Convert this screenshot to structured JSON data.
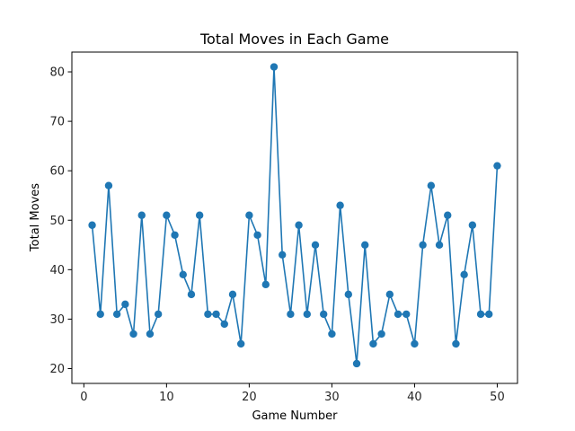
{
  "chart_data": {
    "type": "line",
    "title": "Total Moves in Each Game",
    "xlabel": "Game Number",
    "ylabel": "Total Moves",
    "xlim": [
      -1.45,
      52.45
    ],
    "ylim": [
      17,
      84
    ],
    "xticks": [
      0,
      10,
      20,
      30,
      40,
      50
    ],
    "yticks": [
      20,
      30,
      40,
      50,
      60,
      70,
      80
    ],
    "grid": false,
    "markers": true,
    "color": "#1f77b4",
    "x": [
      1,
      2,
      3,
      4,
      5,
      6,
      7,
      8,
      9,
      10,
      11,
      12,
      13,
      14,
      15,
      16,
      17,
      18,
      19,
      20,
      21,
      22,
      23,
      24,
      25,
      26,
      27,
      28,
      29,
      30,
      31,
      32,
      33,
      34,
      35,
      36,
      37,
      38,
      39,
      40,
      41,
      42,
      43,
      44,
      45,
      46,
      47,
      48,
      49,
      50
    ],
    "series": [
      {
        "values": [
          49,
          31,
          57,
          31,
          33,
          27,
          51,
          27,
          31,
          51,
          47,
          39,
          35,
          51,
          31,
          31,
          29,
          35,
          25,
          51,
          47,
          37,
          81,
          43,
          31,
          49,
          31,
          45,
          31,
          27,
          53,
          35,
          21,
          45,
          25,
          27,
          35,
          31,
          31,
          25,
          45,
          57,
          45,
          51,
          25,
          39,
          49,
          31,
          31,
          61
        ]
      }
    ]
  }
}
